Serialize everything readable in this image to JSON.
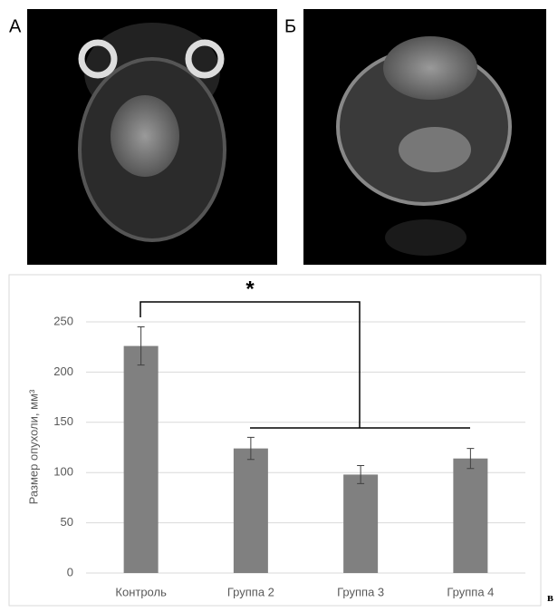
{
  "panels": [
    {
      "label": "А"
    },
    {
      "label": "Б"
    }
  ],
  "chart_data": {
    "type": "bar",
    "panel_label": "в",
    "y_label": "Размер опухоли, мм³",
    "categories": [
      "Контроль",
      "Группа 2",
      "Группа 3",
      "Группа 4"
    ],
    "values": [
      226,
      124,
      98,
      114
    ],
    "errors": [
      19,
      11,
      9,
      10
    ],
    "color": "#808080",
    "ylim": [
      0,
      250
    ],
    "yticks": [
      0,
      50,
      100,
      150,
      200,
      250
    ],
    "grid": true,
    "annotation": "*"
  }
}
